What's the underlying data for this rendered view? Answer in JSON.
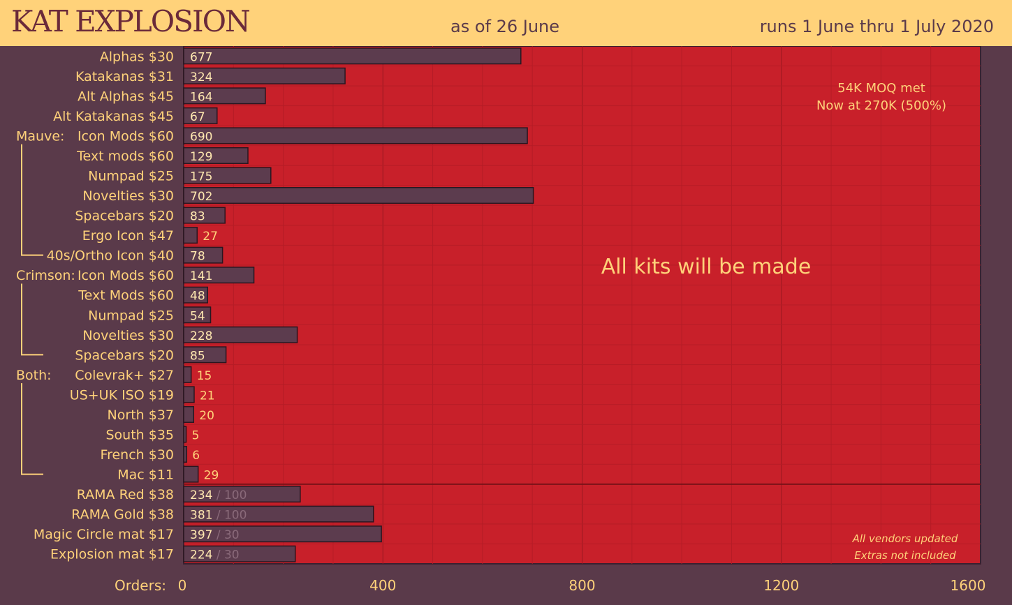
{
  "header": {
    "title": "KAT EXPLOSION",
    "as_of": "as of 26 June",
    "runs": "runs 1 June thru 1 July 2020"
  },
  "colors": {
    "header_bg": "#ffd27a",
    "page_bg": "#5a3a4a",
    "plot_bg": "#c8202a",
    "bar": "#5c3c4e",
    "label": "#ffd27a"
  },
  "chart_data": {
    "type": "bar",
    "orientation": "horizontal",
    "xlabel": "Orders:",
    "xlim": [
      0,
      1600
    ],
    "xticks": [
      0,
      400,
      800,
      1200,
      1600
    ],
    "grid": true,
    "groups": [
      {
        "label": "Mauve:",
        "first": 4,
        "last": 10
      },
      {
        "label": "Crimson:",
        "first": 11,
        "last": 15
      },
      {
        "label": "Both:",
        "first": 16,
        "last": 21
      }
    ],
    "categories": [
      "Alphas $30",
      "Katakanas $31",
      "Alt Alphas $45",
      "Alt Katakanas $45",
      "Icon Mods $60",
      "Text mods $60",
      "Numpad $25",
      "Novelties $30",
      "Spacebars $20",
      "Ergo Icon $47",
      "40s/Ortho Icon $40",
      "Icon Mods $60",
      "Text Mods $60",
      "Numpad $25",
      "Novelties $30",
      "Spacebars $20",
      "Colevrak+ $27",
      "US+UK ISO $19",
      "North $37",
      "South $35",
      "French $30",
      "Mac $11",
      "RAMA Red $38",
      "RAMA Gold $38",
      "Magic Circle mat $17",
      "Explosion mat $17"
    ],
    "values": [
      677,
      324,
      164,
      67,
      690,
      129,
      175,
      702,
      83,
      27,
      78,
      141,
      48,
      54,
      228,
      85,
      15,
      21,
      20,
      5,
      6,
      29,
      234,
      381,
      397,
      224
    ],
    "limits": [
      null,
      null,
      null,
      null,
      null,
      null,
      null,
      null,
      null,
      null,
      null,
      null,
      null,
      null,
      null,
      null,
      null,
      null,
      null,
      null,
      null,
      null,
      100,
      100,
      30,
      30
    ],
    "annotations": {
      "moq_line1": "54K MOQ met",
      "moq_line2": "Now at 270K (500%)",
      "center": "All kits will be made",
      "note_line1": "All vendors updated",
      "note_line2": "Extras not included"
    }
  }
}
